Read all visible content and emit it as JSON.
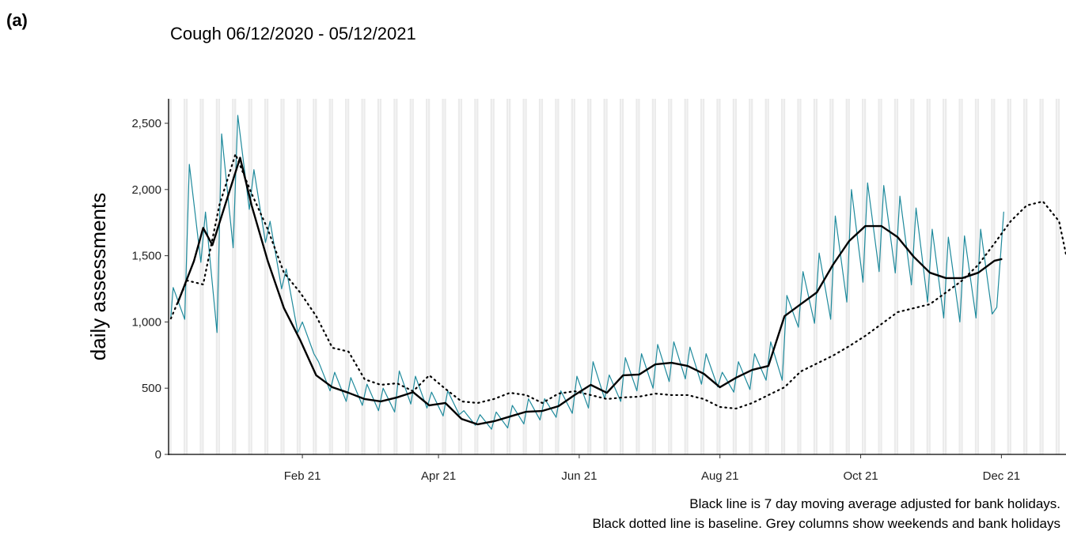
{
  "panel_label": "(a)",
  "chart_data": {
    "type": "line",
    "title": "Cough 06/12/2020 - 05/12/2021",
    "y_label": "daily assessments",
    "notes": [
      "Black line is 7 day moving average adjusted for bank holidays.",
      "Black dotted line is baseline. Grey columns show weekends and bank holidays"
    ],
    "xlim": [
      -1,
      388
    ],
    "xticks": [
      {
        "value": 57,
        "label": "Feb 21"
      },
      {
        "value": 116,
        "label": "Apr 21"
      },
      {
        "value": 177,
        "label": "Jun 21"
      },
      {
        "value": 238,
        "label": "Aug 21"
      },
      {
        "value": 299,
        "label": "Oct 21"
      },
      {
        "value": 360,
        "label": "Dec 21"
      }
    ],
    "ylim": [
      0,
      2685
    ],
    "yticks": [
      0,
      500,
      {
        "value": 1000,
        "label": "1,000"
      },
      {
        "value": 1500,
        "label": "1,500"
      },
      {
        "value": 2000,
        "label": "2,000"
      },
      {
        "value": 2500,
        "label": "2,500"
      }
    ],
    "weekend_columns": true,
    "series": [
      {
        "color": "#1f8a9c",
        "style": "solid",
        "width": 1.2,
        "x": [
          0,
          1,
          6,
          8,
          13,
          15,
          20,
          22,
          27,
          29,
          34,
          36,
          41,
          43,
          48,
          50,
          55,
          57,
          62,
          64,
          69,
          71,
          76,
          78,
          83,
          85,
          90,
          92,
          97,
          99,
          104,
          106,
          111,
          113,
          118,
          120,
          125,
          127,
          132,
          134,
          139,
          141,
          146,
          148,
          153,
          155,
          160,
          162,
          167,
          169,
          174,
          176,
          181,
          183,
          188,
          190,
          195,
          197,
          202,
          204,
          209,
          211,
          216,
          218,
          223,
          225,
          230,
          232,
          237,
          239,
          244,
          246,
          251,
          253,
          258,
          260,
          265,
          267,
          272,
          274,
          279,
          281,
          286,
          288,
          293,
          295,
          300,
          302,
          307,
          309,
          314,
          316,
          321,
          323,
          328,
          330,
          335,
          337,
          342,
          344,
          349,
          351,
          356,
          358,
          361
        ],
        "values": [
          1040,
          1260,
          1020,
          2190,
          1450,
          1830,
          920,
          2420,
          1560,
          2560,
          1850,
          2150,
          1600,
          1760,
          1250,
          1400,
          920,
          1000,
          760,
          700,
          480,
          620,
          400,
          580,
          370,
          530,
          330,
          500,
          320,
          630,
          380,
          590,
          350,
          470,
          290,
          480,
          300,
          330,
          220,
          300,
          190,
          320,
          200,
          370,
          230,
          420,
          260,
          420,
          280,
          480,
          310,
          590,
          350,
          700,
          420,
          600,
          400,
          730,
          480,
          760,
          500,
          830,
          550,
          850,
          570,
          810,
          530,
          760,
          510,
          620,
          470,
          700,
          490,
          760,
          560,
          850,
          560,
          1200,
          960,
          1380,
          990,
          1520,
          1020,
          1800,
          1150,
          2000,
          1300,
          2050,
          1380,
          2030,
          1370,
          1950,
          1280,
          1860,
          1150,
          1700,
          1030,
          1640,
          1000,
          1650,
          1030,
          1700,
          1060,
          1110,
          1830
        ]
      },
      {
        "color": "#000000",
        "style": "dotted",
        "width": 2.2,
        "x": [
          0,
          7,
          14,
          21,
          28,
          35,
          42,
          49,
          56,
          63,
          70,
          77,
          84,
          91,
          98,
          105,
          112,
          119,
          126,
          133,
          140,
          147,
          154,
          161,
          168,
          175,
          182,
          189,
          196,
          203,
          210,
          217,
          224,
          231,
          238,
          245,
          252,
          259,
          266,
          273,
          280,
          287,
          294,
          301,
          308,
          315,
          322,
          329,
          336,
          343,
          350,
          357,
          364,
          371,
          378,
          385,
          388
        ],
        "values": [
          1026,
          1313,
          1283,
          1880,
          2267,
          1969,
          1700,
          1372,
          1223,
          1044,
          805,
          776,
          567,
          525,
          537,
          477,
          597,
          495,
          400,
          388,
          418,
          465,
          448,
          388,
          459,
          477,
          448,
          418,
          430,
          436,
          459,
          448,
          448,
          418,
          358,
          346,
          388,
          448,
          507,
          626,
          686,
          746,
          817,
          895,
          984,
          1074,
          1104,
          1134,
          1223,
          1313,
          1432,
          1593,
          1760,
          1880,
          1910,
          1760,
          1510
        ]
      },
      {
        "color": "#000000",
        "style": "solid",
        "width": 2.4,
        "x": [
          3,
          10,
          14,
          18,
          24,
          30,
          35,
          42,
          49,
          56,
          63,
          70,
          77,
          84,
          91,
          98,
          105,
          112,
          119,
          126,
          133,
          140,
          147,
          154,
          161,
          168,
          175,
          182,
          189,
          196,
          203,
          210,
          217,
          224,
          231,
          238,
          245,
          252,
          259,
          266,
          273,
          280,
          287,
          294,
          301,
          308,
          315,
          322,
          329,
          336,
          343,
          350,
          357,
          360
        ],
        "values": [
          1145,
          1460,
          1710,
          1580,
          1910,
          2240,
          1880,
          1460,
          1105,
          865,
          597,
          507,
          465,
          418,
          400,
          430,
          470,
          370,
          388,
          268,
          227,
          250,
          286,
          322,
          328,
          364,
          448,
          525,
          465,
          597,
          603,
          680,
          692,
          668,
          609,
          507,
          579,
          638,
          668,
          1044,
          1134,
          1223,
          1432,
          1611,
          1724,
          1724,
          1641,
          1492,
          1372,
          1331,
          1331,
          1372,
          1462,
          1474
        ]
      }
    ]
  }
}
